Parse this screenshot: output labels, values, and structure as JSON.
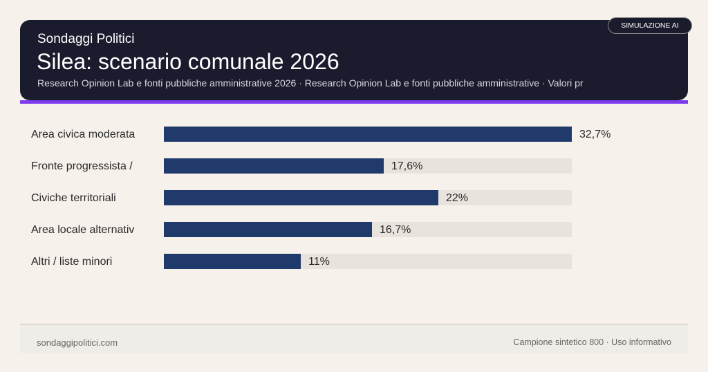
{
  "header": {
    "brand": "Sondaggi Politici",
    "title": "Silea: scenario comunale 2026",
    "subtitle": "Research Opinion Lab e fonti pubbliche amministrative 2026 · Research Opinion Lab e fonti pubbliche amministrative · Valori pr",
    "badge": "SIMULAZIONE AI"
  },
  "colors": {
    "header_bg": "#1b1b2e",
    "accent": "#7b3aed",
    "bar": "#1f3a6b",
    "track": "#e8e3dc"
  },
  "chart_data": {
    "type": "bar",
    "orientation": "horizontal",
    "categories": [
      "Area civica moderata",
      "Fronte progressista /",
      "Civiche territoriali",
      "Area locale alternativ",
      "Altri / liste minori"
    ],
    "values": [
      32.7,
      17.6,
      22,
      16.7,
      11
    ],
    "value_labels": [
      "32,7%",
      "17,6%",
      "22%",
      "16,7%",
      "11%"
    ],
    "xlim": [
      0,
      32.7
    ],
    "grid": false
  },
  "footer": {
    "left": "sondaggipolitici.com",
    "right": "Campione sintetico 800 · Uso informativo"
  }
}
